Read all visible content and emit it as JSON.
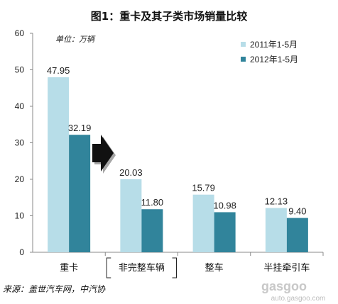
{
  "chart_data": {
    "type": "bar",
    "title": "图1：重卡及其子类市场销量比较",
    "unit_note": "单位：万辆",
    "categories": [
      "重卡",
      "非完整车辆",
      "整车",
      "半挂牵引车"
    ],
    "series": [
      {
        "name": "2011年1-5月",
        "values": [
          47.95,
          20.03,
          15.79,
          12.13
        ],
        "color": "#b7dde8"
      },
      {
        "name": "2012年1-5月",
        "values": [
          32.19,
          11.8,
          10.98,
          9.4
        ],
        "color": "#31849b"
      }
    ],
    "data_labels": [
      [
        "47.95",
        "20.03",
        "15.79",
        "12.13"
      ],
      [
        "32.19",
        "11.80",
        "10.98",
        "9.40"
      ]
    ],
    "y_ticks": [
      "0",
      "10",
      "20",
      "30",
      "40",
      "50",
      "60"
    ],
    "ylim": [
      0,
      60
    ],
    "grid": false,
    "legend_position": "top-right",
    "source": "来源：盖世汽车网，中汽协"
  },
  "watermark": {
    "main": "gasgoo",
    "sub": "auto.gasgoo.com"
  }
}
